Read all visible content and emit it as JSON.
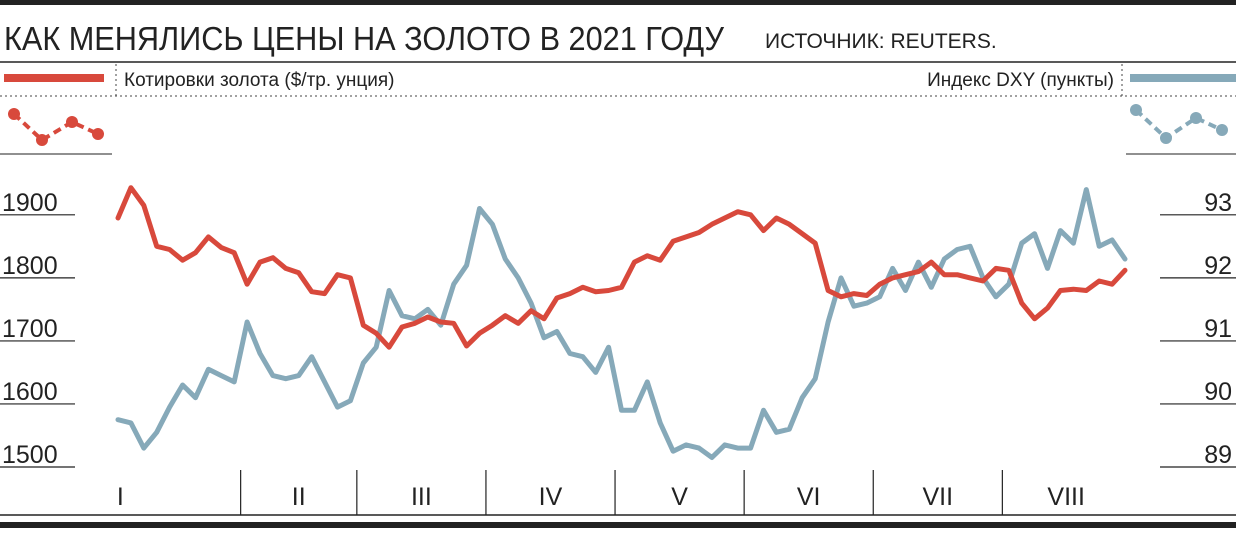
{
  "chart_data": {
    "type": "line",
    "title": "КАК МЕНЯЛИСЬ ЦЕНЫ НА ЗОЛОТО В 2021 ГОДУ",
    "source": "ИСТОЧНИК: REUTERS.",
    "x": [
      "I",
      "I",
      "I",
      "I",
      "I",
      "I",
      "I",
      "I",
      "I",
      "I",
      "II",
      "II",
      "II",
      "II",
      "II",
      "II",
      "II",
      "II",
      "II",
      "III",
      "III",
      "III",
      "III",
      "III",
      "III",
      "III",
      "III",
      "III",
      "III",
      "IV",
      "IV",
      "IV",
      "IV",
      "IV",
      "IV",
      "IV",
      "IV",
      "IV",
      "IV",
      "V",
      "V",
      "V",
      "V",
      "V",
      "V",
      "V",
      "V",
      "V",
      "V",
      "VI",
      "VI",
      "VI",
      "VI",
      "VI",
      "VI",
      "VI",
      "VI",
      "VI",
      "VI",
      "VII",
      "VII",
      "VII",
      "VII",
      "VII",
      "VII",
      "VII",
      "VII",
      "VII",
      "VII",
      "VIII",
      "VIII",
      "VIII",
      "VIII",
      "VIII",
      "VIII",
      "VIII",
      "VIII",
      "VIII",
      "VIII"
    ],
    "series": [
      {
        "name": "Котировки золота ($/тр. унция)",
        "color": "#d8493c",
        "values": [
          1895,
          1943,
          1915,
          1850,
          1845,
          1828,
          1840,
          1865,
          1848,
          1840,
          1790,
          1825,
          1832,
          1815,
          1808,
          1778,
          1775,
          1805,
          1800,
          1725,
          1712,
          1690,
          1722,
          1728,
          1738,
          1730,
          1728,
          1692,
          1712,
          1725,
          1740,
          1728,
          1748,
          1735,
          1768,
          1775,
          1785,
          1778,
          1780,
          1785,
          1825,
          1835,
          1828,
          1858,
          1865,
          1872,
          1885,
          1895,
          1905,
          1900,
          1875,
          1895,
          1885,
          1870,
          1855,
          1780,
          1770,
          1775,
          1772,
          1790,
          1800,
          1805,
          1810,
          1825,
          1805,
          1805,
          1800,
          1795,
          1815,
          1812,
          1760,
          1735,
          1752,
          1780,
          1782,
          1780,
          1795,
          1790,
          1812
        ]
      },
      {
        "name": "Индекс DXY (пункты)",
        "color": "#86a9b9",
        "axis": "y2",
        "values": [
          89.75,
          89.7,
          89.3,
          89.55,
          89.95,
          90.3,
          90.1,
          90.55,
          90.45,
          90.35,
          91.3,
          90.8,
          90.45,
          90.4,
          90.45,
          90.75,
          90.35,
          89.95,
          90.05,
          90.65,
          90.9,
          91.8,
          91.4,
          91.35,
          91.5,
          91.25,
          91.9,
          92.2,
          93.1,
          92.85,
          92.3,
          92.0,
          91.6,
          91.05,
          91.15,
          90.8,
          90.75,
          90.5,
          90.9,
          89.9,
          89.9,
          90.35,
          89.7,
          89.25,
          89.35,
          89.3,
          89.15,
          89.35,
          89.3,
          89.3,
          89.9,
          89.55,
          89.6,
          90.1,
          90.4,
          91.3,
          92.0,
          91.55,
          91.6,
          91.7,
          92.15,
          91.8,
          92.25,
          91.85,
          92.3,
          92.45,
          92.5,
          92.0,
          91.7,
          91.9,
          92.55,
          92.7,
          92.15,
          92.75,
          92.55,
          93.4,
          92.5,
          92.6,
          92.3
        ]
      }
    ],
    "ylim": [
      1500,
      1960
    ],
    "yticks": [
      1500,
      1600,
      1700,
      1800,
      1900
    ],
    "y2lim": [
      89,
      93.6
    ],
    "y2ticks": [
      89,
      90,
      91,
      92,
      93
    ]
  }
}
